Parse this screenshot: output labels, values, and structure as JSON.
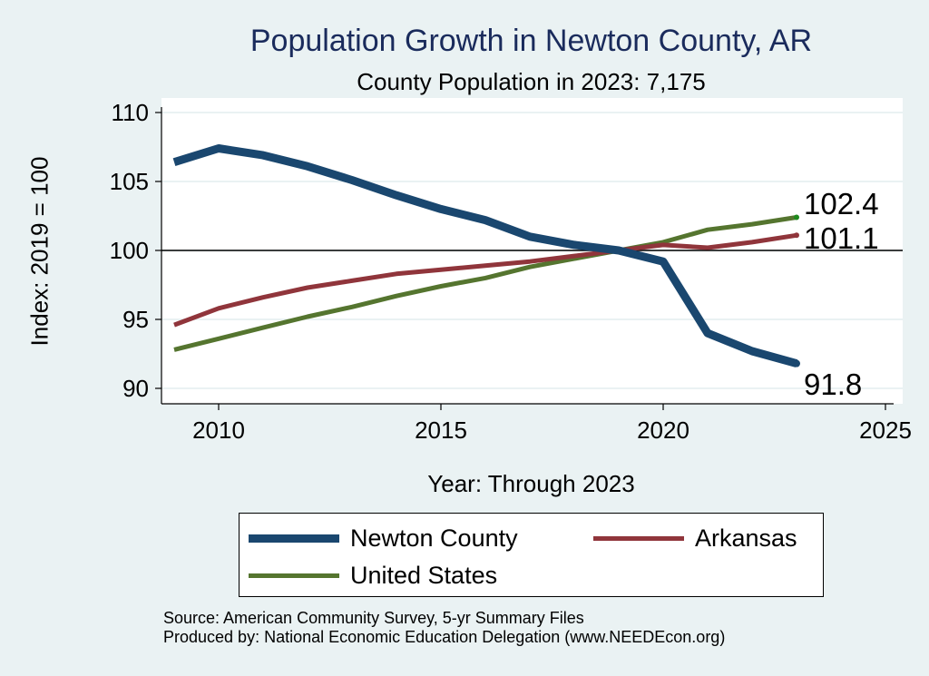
{
  "chart_data": {
    "type": "line",
    "title": "Population Growth in Newton County, AR",
    "subtitle": "County Population in 2023: 7,175",
    "xlabel": "Year: Through 2023",
    "ylabel": "Index: 2019 = 100",
    "xlim": [
      2009,
      2025
    ],
    "ylim": [
      90,
      110
    ],
    "xticks": [
      2010,
      2015,
      2020,
      2025
    ],
    "yticks": [
      90,
      95,
      100,
      105,
      110
    ],
    "reference_line": 100,
    "grid": "horizontal",
    "legend_position": "bottom",
    "series": [
      {
        "name": "Newton  County",
        "color": "#1a476f",
        "x": [
          2009,
          2010,
          2011,
          2012,
          2013,
          2014,
          2015,
          2016,
          2017,
          2018,
          2019,
          2020,
          2021,
          2022,
          2023
        ],
        "values": [
          106.4,
          107.4,
          106.9,
          106.1,
          105.1,
          104.0,
          103.0,
          102.2,
          101.0,
          100.4,
          100.0,
          99.2,
          94.0,
          92.7,
          91.8
        ],
        "end_label": "91.8"
      },
      {
        "name": "Arkansas",
        "color": "#90353b",
        "x": [
          2009,
          2010,
          2011,
          2012,
          2013,
          2014,
          2015,
          2016,
          2017,
          2018,
          2019,
          2020,
          2021,
          2022,
          2023
        ],
        "values": [
          94.6,
          95.8,
          96.6,
          97.3,
          97.8,
          98.3,
          98.6,
          98.9,
          99.2,
          99.6,
          100.0,
          100.4,
          100.2,
          100.6,
          101.1
        ],
        "end_label": "101.1"
      },
      {
        "name": "United States",
        "color": "#55752f",
        "x": [
          2009,
          2010,
          2011,
          2012,
          2013,
          2014,
          2015,
          2016,
          2017,
          2018,
          2019,
          2020,
          2021,
          2022,
          2023
        ],
        "values": [
          92.8,
          93.6,
          94.4,
          95.2,
          95.9,
          96.7,
          97.4,
          98.0,
          98.8,
          99.4,
          100.0,
          100.6,
          101.5,
          101.9,
          102.4
        ],
        "end_label": "102.4"
      }
    ]
  },
  "footer": {
    "source": "Source: American Community Survey, 5-yr Summary Files",
    "produced_by": "Produced by: National Economic Education Delegation (www.NEEDEcon.org)"
  }
}
